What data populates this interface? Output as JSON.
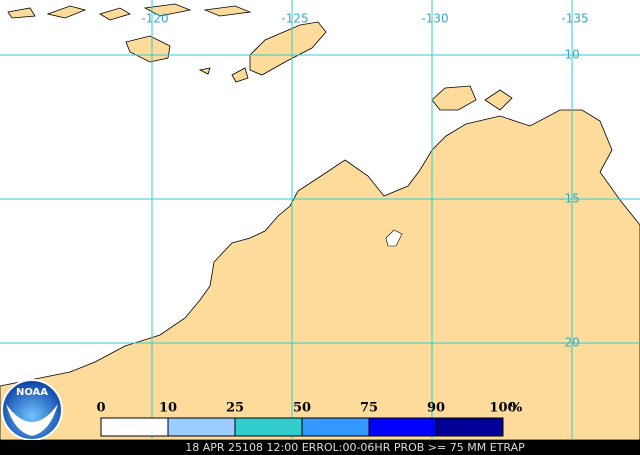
{
  "map": {
    "lon_lines": [
      -120,
      -125,
      -130,
      -135
    ],
    "lat_lines": [
      -10,
      -15,
      -20
    ]
  },
  "legend": {
    "ticks": [
      0,
      10,
      25,
      50,
      75,
      90,
      100
    ],
    "unit": "%",
    "colors": [
      "#ffffff",
      "#99ccff",
      "#33cccc",
      "#3399ff",
      "#0000ff",
      "#000099"
    ]
  },
  "logo": "NOAA",
  "footer": "18 APR 25108 12:00 ERROL:00-06HR PROB >= 75 MM ETRAP"
}
